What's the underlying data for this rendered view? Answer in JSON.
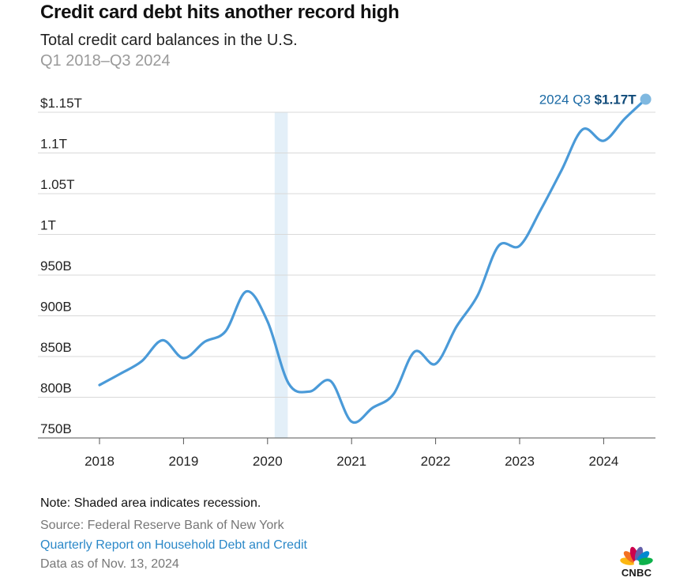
{
  "header": {
    "title": "Credit card debt hits another record high",
    "subtitle": "Total credit card balances in the U.S.",
    "date_range": "Q1 2018–Q3 2024"
  },
  "footer": {
    "note": "Note: Shaded area indicates recession.",
    "source": "Source: Federal Reserve Bank of New York",
    "link": "Quarterly Report on Household Debt and Credit",
    "as_of": "Data as of Nov. 13, 2024"
  },
  "logo": {
    "text": "CNBC",
    "icon": "cnbc-peacock-icon"
  },
  "annotation": {
    "label": "2024 Q3",
    "value": "$1.17T"
  },
  "colors": {
    "line": "#4a9ad8",
    "recession": "#e3eff8",
    "grid": "#d9d9d9",
    "annotation_dot": "#7fb8e0",
    "link": "#2b88c8"
  },
  "chart_data": {
    "type": "line",
    "title": "Credit card debt hits another record high",
    "subtitle": "Total credit card balances in the U.S.",
    "x": [
      "2018 Q1",
      "2018 Q2",
      "2018 Q3",
      "2018 Q4",
      "2019 Q1",
      "2019 Q2",
      "2019 Q3",
      "2019 Q4",
      "2020 Q1",
      "2020 Q2",
      "2020 Q3",
      "2020 Q4",
      "2021 Q1",
      "2021 Q2",
      "2021 Q3",
      "2021 Q4",
      "2022 Q1",
      "2022 Q2",
      "2022 Q3",
      "2022 Q4",
      "2023 Q1",
      "2023 Q2",
      "2023 Q3",
      "2023 Q4",
      "2024 Q1",
      "2024 Q2",
      "2024 Q3"
    ],
    "series": [
      {
        "values": [
          815,
          829,
          844,
          870,
          848,
          868,
          881,
          930,
          893,
          817,
          807,
          820,
          770,
          787,
          804,
          856,
          841,
          887,
          925,
          986,
          986,
          1030,
          1079,
          1129,
          1115,
          1142,
          1166
        ]
      }
    ],
    "x_ticks": [
      "2018",
      "2019",
      "2020",
      "2021",
      "2022",
      "2023",
      "2024"
    ],
    "y_ticks": [
      {
        "value": 750,
        "label": "750B"
      },
      {
        "value": 800,
        "label": "800B"
      },
      {
        "value": 850,
        "label": "850B"
      },
      {
        "value": 900,
        "label": "900B"
      },
      {
        "value": 950,
        "label": "950B"
      },
      {
        "value": 1000,
        "label": "1T"
      },
      {
        "value": 1050,
        "label": "1.05T"
      },
      {
        "value": 1100,
        "label": "1.1T"
      },
      {
        "value": 1150,
        "label": "$1.15T"
      }
    ],
    "ylim": [
      750,
      1170
    ],
    "units": "billions of dollars",
    "recession": {
      "start": "2020 Q1",
      "end": "2020 Q2"
    },
    "grid": true,
    "legend": "none"
  }
}
